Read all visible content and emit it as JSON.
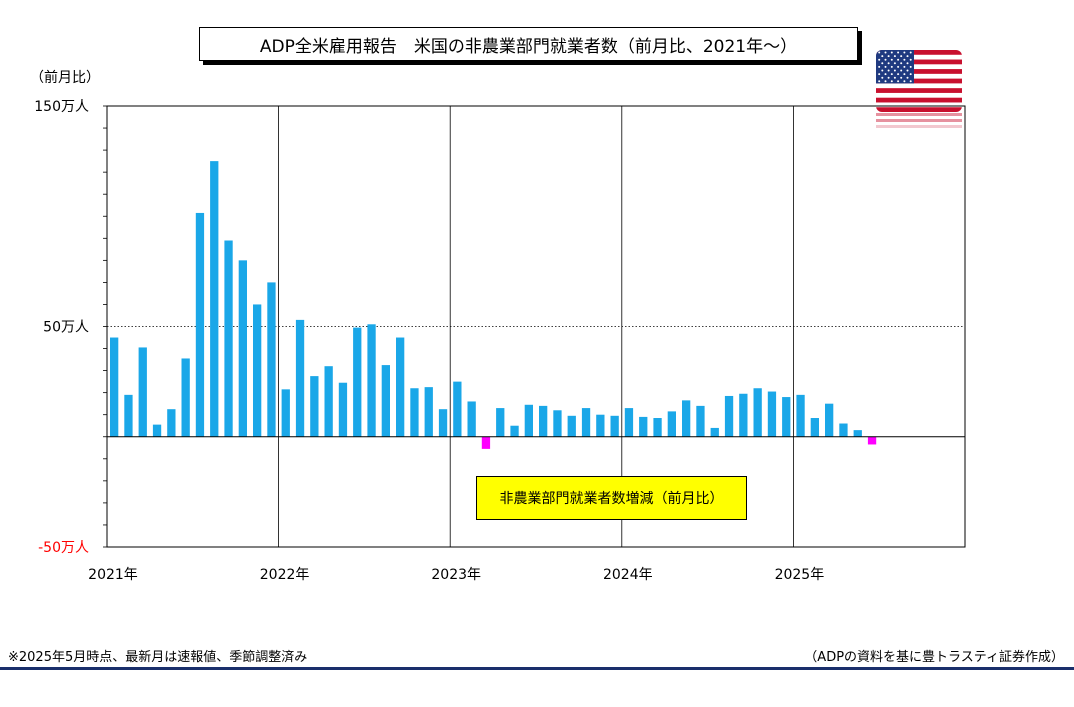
{
  "title": "ADP全米雇用報告　米国の非農業部門就業者数（前月比、2021年〜）",
  "footnote": "※2025年5月時点、最新月は速報値、季節調整済み",
  "source": "（ADPの資料を基に豊トラスティ証券作成）",
  "flag_icon": "us-flag-icon",
  "colors": {
    "positive": "#1aa7e8",
    "negative": "#ff00ff",
    "legend_bg": "#ffff00",
    "rule": "#1a2f6b"
  },
  "chart_data": {
    "type": "bar",
    "ylabel": "（前月比）",
    "ytick_labels": [
      "150万人",
      "50万人",
      "-50万人"
    ],
    "yticks": [
      150,
      50,
      -50
    ],
    "ylim": [
      -50,
      150
    ],
    "y_unit": "万人",
    "xtick_labels": [
      "2021年",
      "2022年",
      "2023年",
      "2024年",
      "2025年"
    ],
    "annotation": "非農業部門就業者数増減（前月比）",
    "grid": true,
    "start": "2021-01",
    "x_end": "2026-01",
    "values": [
      45,
      19,
      40.5,
      5.5,
      12.5,
      35.5,
      101.5,
      125,
      89,
      80,
      60,
      70,
      21.5,
      53,
      27.5,
      32,
      24.5,
      49.5,
      51,
      32.5,
      45,
      22,
      22.5,
      12.5,
      25,
      16,
      -5.5,
      13,
      5,
      14.5,
      14,
      12,
      9.5,
      13,
      10,
      9.5,
      13,
      9,
      8.5,
      11.5,
      16.5,
      14,
      4,
      18.5,
      19.5,
      22,
      20.5,
      18,
      19,
      8.5,
      15,
      6,
      3,
      -3.5
    ]
  }
}
